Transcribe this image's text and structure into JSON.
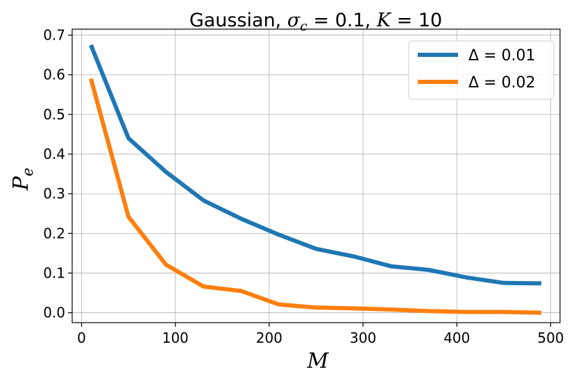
{
  "chart_data": {
    "type": "line",
    "title": "Gaussian, σ_c = 0.1, K = 10",
    "title_parts": {
      "prefix": "Gaussian, ",
      "sigma": "σ",
      "sigma_sub": "c",
      "sigma_eq": " = 0.1, ",
      "k": "K",
      "k_eq": " = 10"
    },
    "xlabel": "M",
    "ylabel": "P",
    "ylabel_sub": "e",
    "xlim": [
      -10,
      510
    ],
    "ylim": [
      -0.025,
      0.715
    ],
    "xticks": [
      0,
      100,
      200,
      300,
      400,
      500
    ],
    "yticks": [
      0.0,
      0.1,
      0.2,
      0.3,
      0.4,
      0.5,
      0.6,
      0.7
    ],
    "grid": true,
    "legend_position": "top-right",
    "x": [
      10,
      50,
      90,
      130,
      170,
      210,
      250,
      290,
      330,
      370,
      410,
      450,
      490
    ],
    "series": [
      {
        "name": "Δ = 0.01",
        "color": "#1f77b4",
        "values": [
          0.675,
          0.44,
          0.355,
          0.283,
          0.237,
          0.197,
          0.161,
          0.142,
          0.117,
          0.108,
          0.089,
          0.075,
          0.074
        ]
      },
      {
        "name": "Δ = 0.02",
        "color": "#ff7f0e",
        "values": [
          0.59,
          0.242,
          0.121,
          0.066,
          0.055,
          0.021,
          0.013,
          0.011,
          0.008,
          0.004,
          0.002,
          0.002,
          0.0
        ]
      }
    ]
  }
}
